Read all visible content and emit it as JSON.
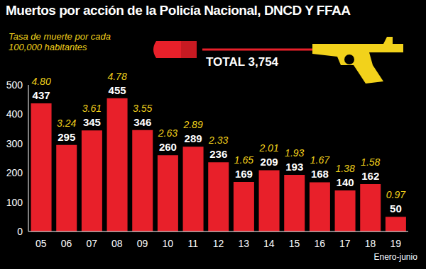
{
  "chart_data": {
    "type": "bar",
    "title": "Muertos por acción de la Policía Nacional, DNCD Y FFAA",
    "categories": [
      "05",
      "06",
      "07",
      "08",
      "09",
      "10",
      "11",
      "12",
      "13",
      "14",
      "15",
      "16",
      "17",
      "18",
      "19"
    ],
    "values": [
      437,
      295,
      345,
      455,
      346,
      260,
      289,
      236,
      169,
      209,
      193,
      168,
      140,
      162,
      50
    ],
    "rates": [
      4.8,
      3.24,
      3.61,
      4.78,
      3.55,
      2.63,
      2.89,
      2.33,
      1.65,
      2.01,
      1.93,
      1.67,
      1.38,
      1.58,
      0.97
    ],
    "rate_labels": [
      "4.80",
      "3.24",
      "3.61",
      "4.78",
      "3.55",
      "2.63",
      "2.89",
      "2.33",
      "1.65",
      "2.01",
      "1.93",
      "1.67",
      "1.38",
      "1.58",
      "0.97"
    ],
    "color": "#e8202a",
    "ylim": [
      0,
      500
    ],
    "yticks": [
      0,
      100,
      200,
      300,
      400,
      500
    ],
    "grid": false,
    "data_labels": true,
    "annotations": {
      "rate_caption": [
        "Tasa de muerte por cada",
        "100,000 habitantes"
      ],
      "total": "TOTAL 3,754",
      "last_category_note": "Enero-junio"
    }
  }
}
